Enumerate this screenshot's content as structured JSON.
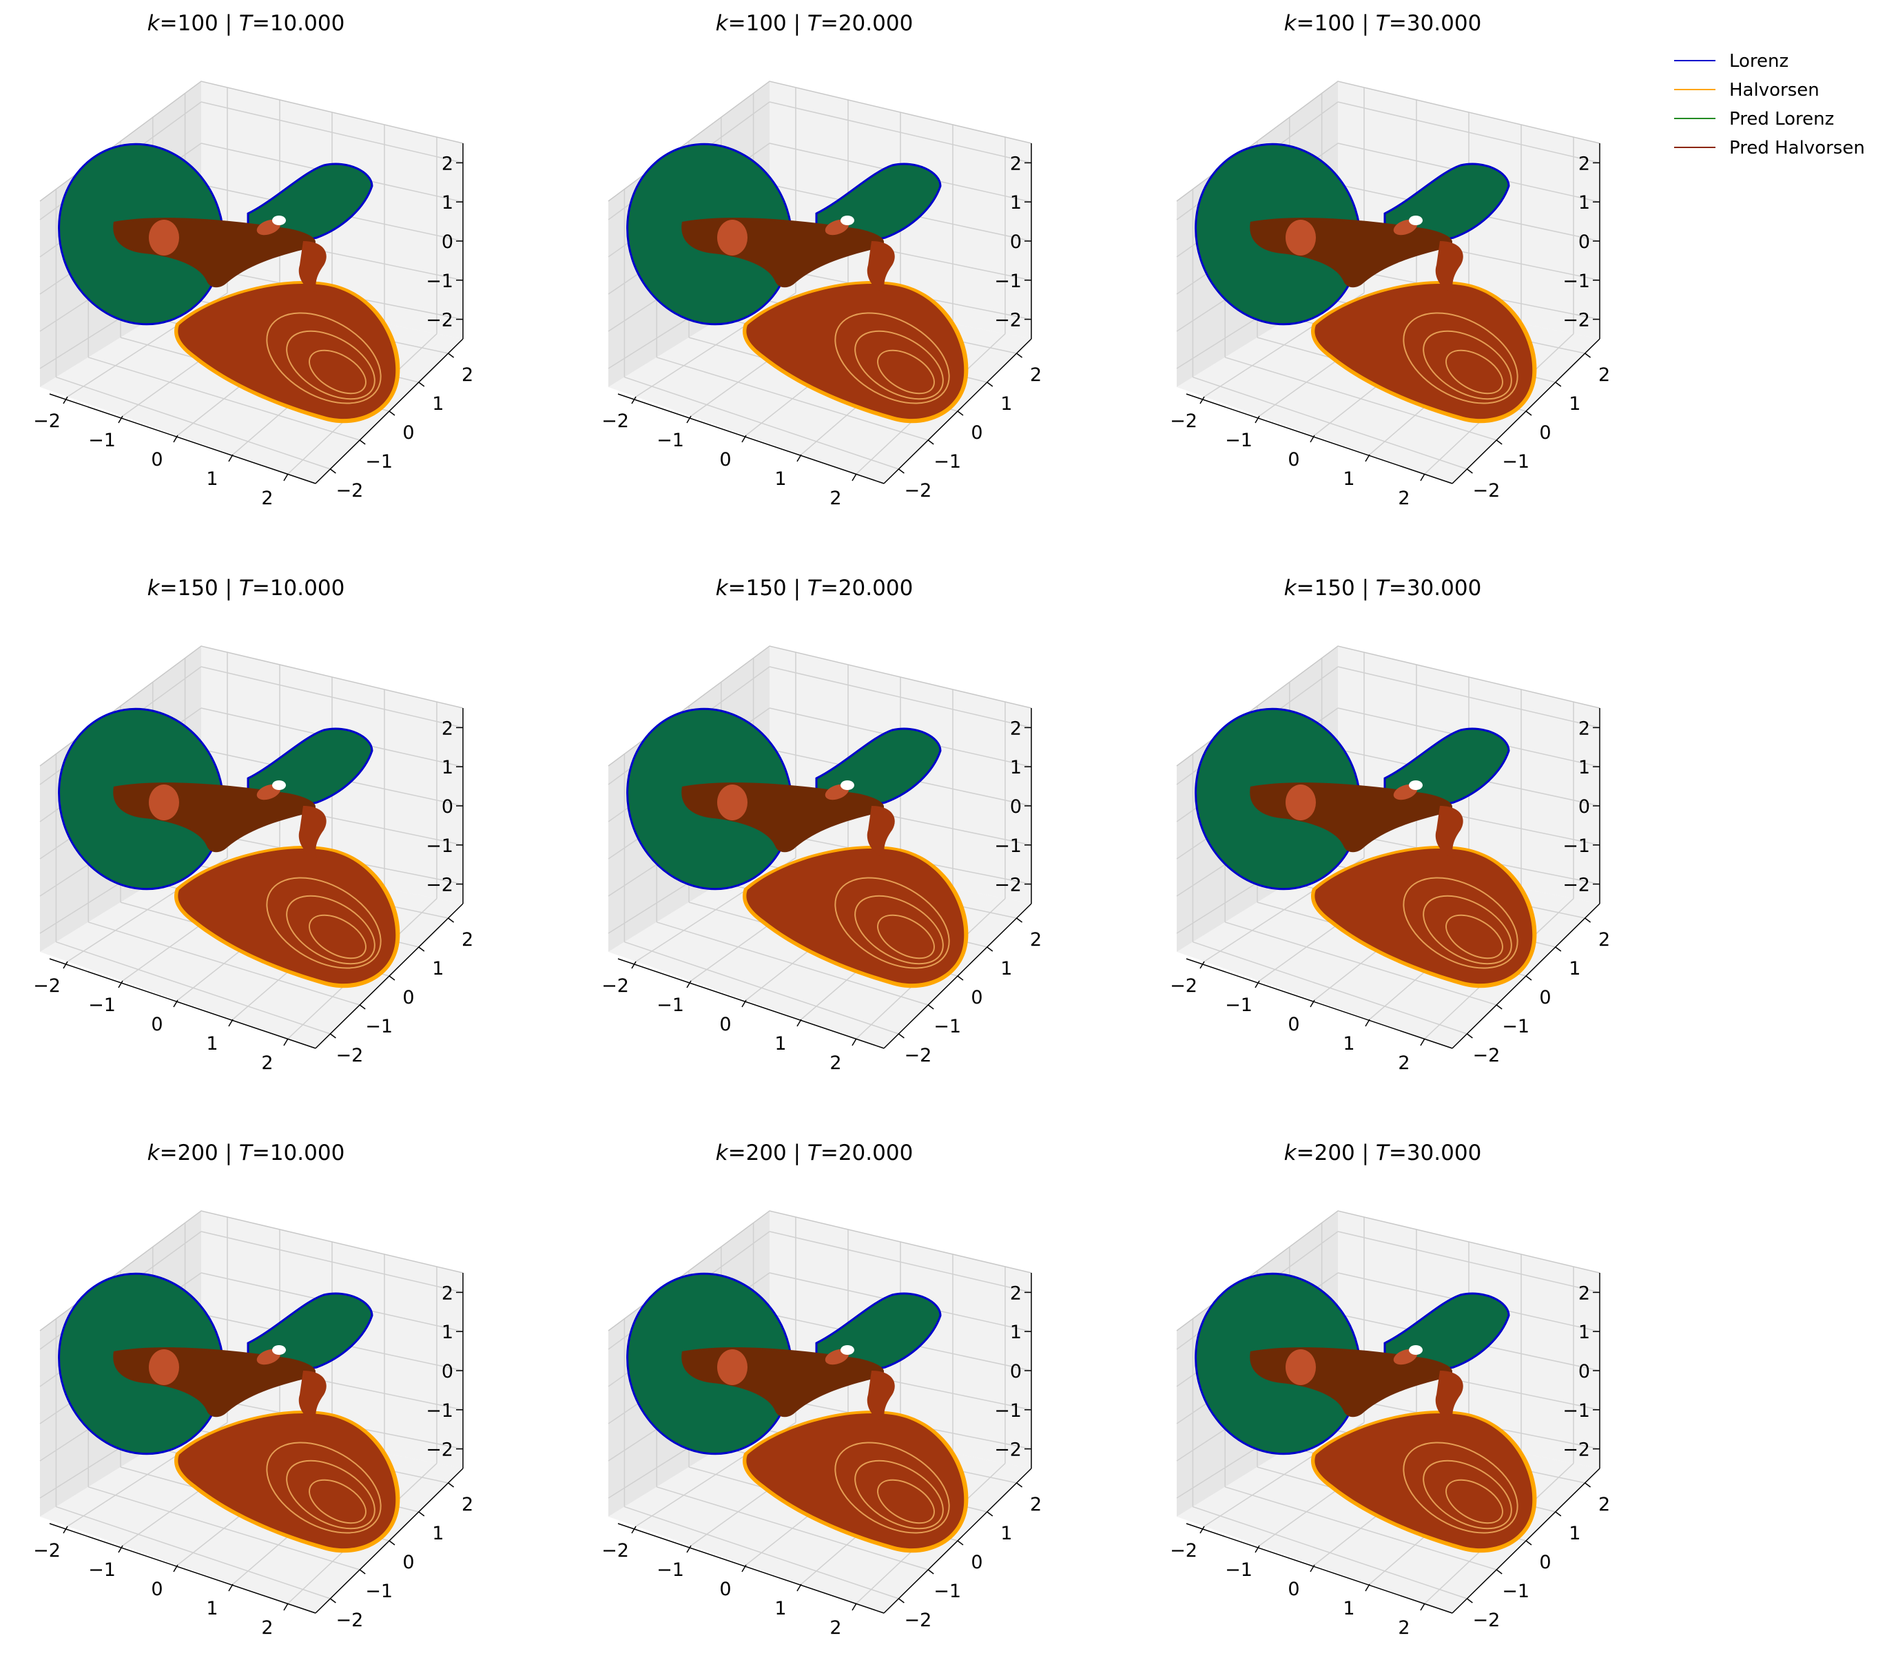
{
  "chart_data": {
    "type": "line",
    "projection": "3d",
    "grid": true,
    "legend": {
      "placement": "top-right, outside plot grid",
      "entries": [
        {
          "label": "Lorenz",
          "color": "#0000cc"
        },
        {
          "label": "Halvorsen",
          "color": "#ffa500"
        },
        {
          "label": "Pred Lorenz",
          "color": "#228b22"
        },
        {
          "label": "Pred Halvorsen",
          "color": "#8b2500"
        }
      ]
    },
    "colors": {
      "lorenz": "#0000cc",
      "halvorsen": "#ffa500",
      "pred_lorenz": "#0b6a44",
      "pred_halvorsen": "#a0360f",
      "overlap_dark": "#6e2a05",
      "pane": "#f2f2f2",
      "pane_side": "#e6e6e6",
      "grid": "#d0d0d0"
    },
    "axes": {
      "xlim": [
        -2.5,
        2.5
      ],
      "ylim": [
        -2.5,
        2.5
      ],
      "zlim": [
        -2.5,
        2.5
      ],
      "xticks": [
        "−2",
        "−1",
        "0",
        "1",
        "2"
      ],
      "yticks": [
        "−2",
        "−1",
        "0",
        "1",
        "2"
      ],
      "zticks": [
        "2",
        "1",
        "0",
        "−1",
        "−2"
      ]
    },
    "panels": [
      {
        "title_k": "100",
        "title_t": "10.000"
      },
      {
        "title_k": "100",
        "title_t": "20.000"
      },
      {
        "title_k": "100",
        "title_t": "30.000"
      },
      {
        "title_k": "150",
        "title_t": "10.000"
      },
      {
        "title_k": "150",
        "title_t": "20.000"
      },
      {
        "title_k": "150",
        "title_t": "30.000"
      },
      {
        "title_k": "200",
        "title_t": "10.000"
      },
      {
        "title_k": "200",
        "title_t": "20.000"
      },
      {
        "title_k": "200",
        "title_t": "30.000"
      }
    ]
  }
}
